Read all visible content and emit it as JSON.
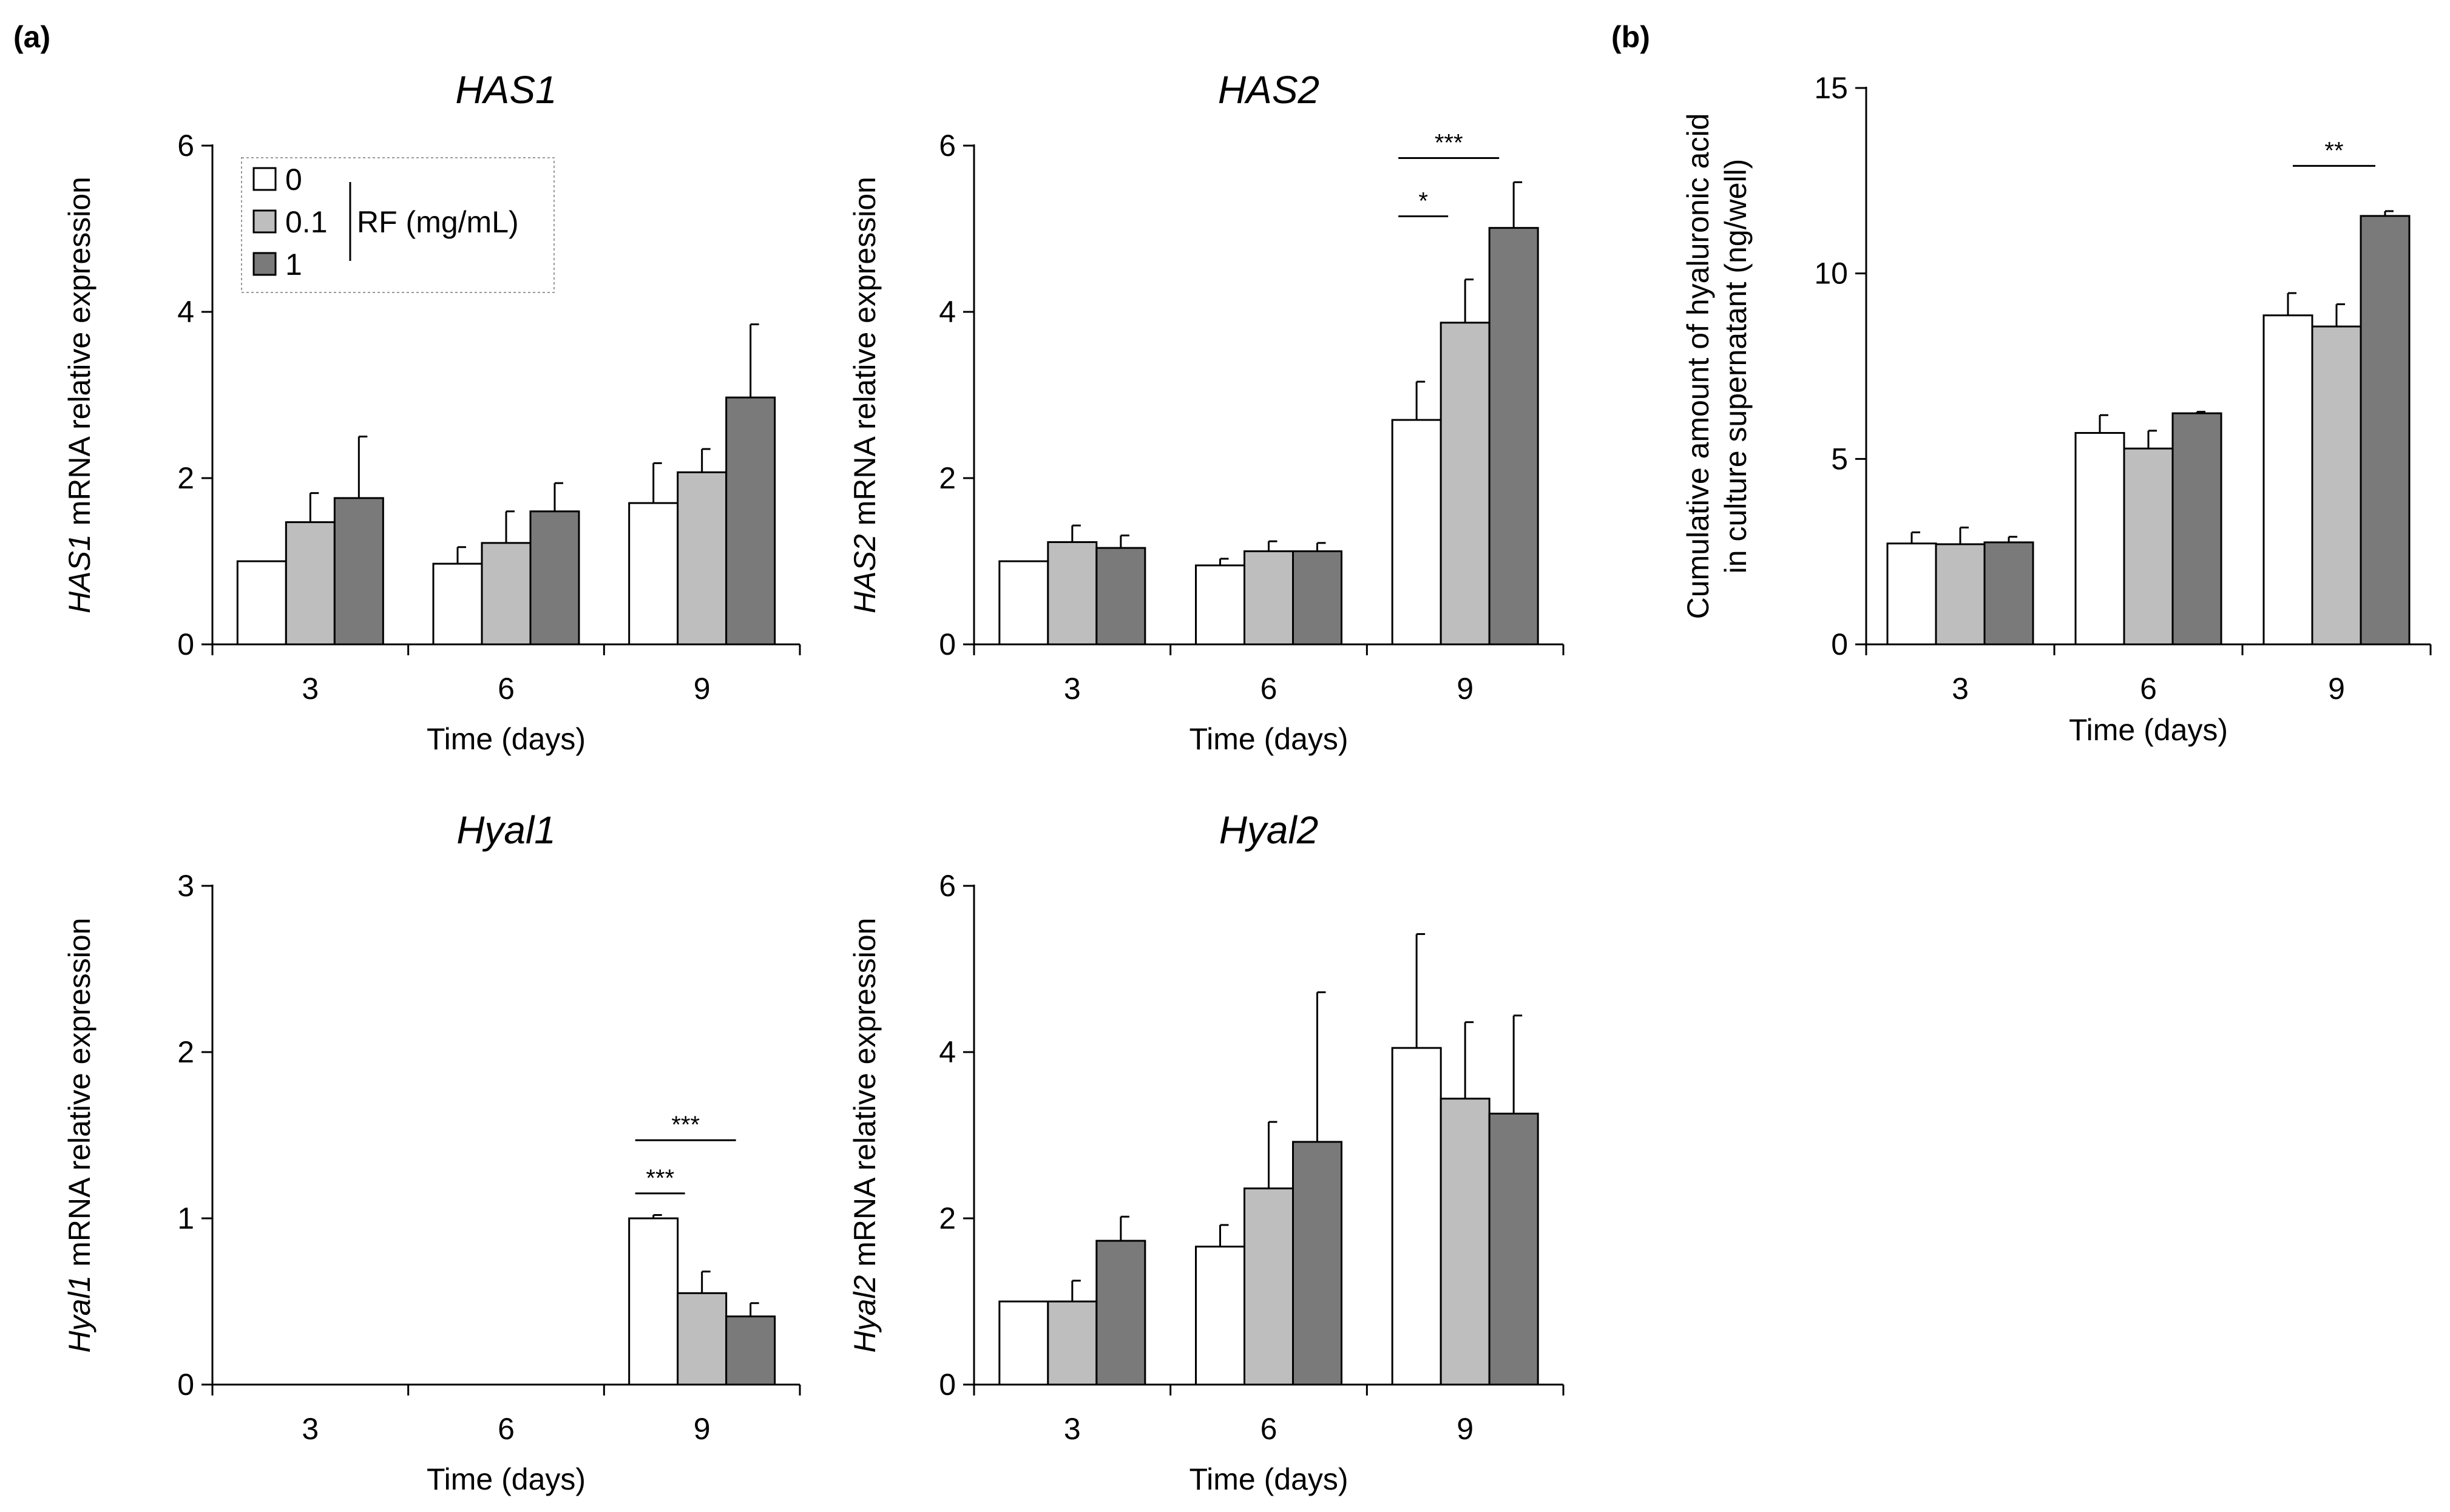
{
  "panel_labels": [
    "(a)",
    "(b)"
  ],
  "legend": {
    "entries": [
      {
        "label": "0",
        "color": "#ffffff"
      },
      {
        "label": "0.1",
        "color": "#bebebe"
      },
      {
        "label": "1",
        "color": "#7a7a7a"
      }
    ],
    "group_label": "RF (mg/mL)"
  },
  "series_colors": [
    "#ffffff",
    "#bebebe",
    "#7a7a7a"
  ],
  "chart_data": [
    {
      "id": "has1",
      "type": "bar",
      "title": "HAS1",
      "title_italic": true,
      "ylabel_italic": "HAS1",
      "ylabel_rest": " mRNA relative expression",
      "xlabel": "Time (days)",
      "categories": [
        "3",
        "6",
        "9"
      ],
      "ylim": [
        0,
        6
      ],
      "yticks": [
        0,
        2,
        4,
        6
      ],
      "series": [
        {
          "name": "0",
          "values": [
            1.0,
            0.97,
            1.7
          ],
          "errors": [
            0.0,
            0.2,
            0.48
          ]
        },
        {
          "name": "0.1",
          "values": [
            1.47,
            1.22,
            2.07
          ],
          "errors": [
            0.35,
            0.38,
            0.28
          ]
        },
        {
          "name": "1",
          "values": [
            1.76,
            1.6,
            2.97
          ],
          "errors": [
            0.74,
            0.34,
            0.88
          ]
        }
      ],
      "significance": []
    },
    {
      "id": "has2",
      "type": "bar",
      "title": "HAS2",
      "title_italic": true,
      "ylabel_italic": "HAS2",
      "ylabel_rest": " mRNA relative expression",
      "xlabel": "Time (days)",
      "categories": [
        "3",
        "6",
        "9"
      ],
      "ylim": [
        0,
        6
      ],
      "yticks": [
        0,
        2,
        4,
        6
      ],
      "series": [
        {
          "name": "0",
          "values": [
            1.0,
            0.95,
            2.7
          ],
          "errors": [
            0.0,
            0.08,
            0.46
          ]
        },
        {
          "name": "0.1",
          "values": [
            1.23,
            1.12,
            3.87
          ],
          "errors": [
            0.2,
            0.12,
            0.52
          ]
        },
        {
          "name": "1",
          "values": [
            1.16,
            1.12,
            5.01
          ],
          "errors": [
            0.15,
            0.1,
            0.55
          ]
        }
      ],
      "significance": [
        {
          "label": "*",
          "category": 2,
          "from": 0,
          "to": 1,
          "y": 5.15
        },
        {
          "label": "***",
          "category": 2,
          "from": 0,
          "to": 2,
          "y": 5.85
        }
      ]
    },
    {
      "id": "hyal1",
      "type": "bar",
      "title": "Hyal1",
      "title_italic": true,
      "ylabel_italic": "Hyal1",
      "ylabel_rest": " mRNA relative expression",
      "xlabel": "Time (days)",
      "categories": [
        "3",
        "6",
        "9"
      ],
      "ylim": [
        0,
        3
      ],
      "yticks": [
        0,
        1,
        2,
        3
      ],
      "series": [
        {
          "name": "0",
          "values": [
            null,
            null,
            1.0
          ],
          "errors": [
            null,
            null,
            0.02
          ]
        },
        {
          "name": "0.1",
          "values": [
            null,
            null,
            0.55
          ],
          "errors": [
            null,
            null,
            0.13
          ]
        },
        {
          "name": "1",
          "values": [
            null,
            null,
            0.41
          ],
          "errors": [
            null,
            null,
            0.08
          ]
        }
      ],
      "significance": [
        {
          "label": "***",
          "category": 2,
          "from": 0,
          "to": 1,
          "y": 1.15
        },
        {
          "label": "***",
          "category": 2,
          "from": 0,
          "to": 2,
          "y": 1.47
        }
      ]
    },
    {
      "id": "hyal2",
      "type": "bar",
      "title": "Hyal2",
      "title_italic": true,
      "ylabel_italic": "Hyal2",
      "ylabel_rest": " mRNA relative expression",
      "xlabel": "Time (days)",
      "categories": [
        "3",
        "6",
        "9"
      ],
      "ylim": [
        0,
        6
      ],
      "yticks": [
        0,
        2,
        4,
        6
      ],
      "series": [
        {
          "name": "0",
          "values": [
            1.0,
            1.66,
            4.05
          ],
          "errors": [
            0.0,
            0.26,
            1.37
          ]
        },
        {
          "name": "0.1",
          "values": [
            1.0,
            2.36,
            3.44
          ],
          "errors": [
            0.25,
            0.8,
            0.92
          ]
        },
        {
          "name": "1",
          "values": [
            1.73,
            2.92,
            3.26
          ],
          "errors": [
            0.29,
            1.8,
            1.18
          ]
        }
      ],
      "significance": []
    },
    {
      "id": "hyaluronic",
      "type": "bar",
      "title": "",
      "title_italic": false,
      "ylabel_lines": [
        "Cumulative amount of hyaluronic acid",
        "in culture supernatant (ng/well)"
      ],
      "xlabel": "Time (days)",
      "categories": [
        "3",
        "6",
        "9"
      ],
      "ylim": [
        0,
        15
      ],
      "yticks": [
        0,
        5,
        10,
        15
      ],
      "series": [
        {
          "name": "0",
          "values": [
            2.72,
            5.7,
            8.87
          ],
          "errors": [
            0.3,
            0.48,
            0.6
          ]
        },
        {
          "name": "0.1",
          "values": [
            2.7,
            5.28,
            8.57
          ],
          "errors": [
            0.45,
            0.48,
            0.6
          ]
        },
        {
          "name": "1",
          "values": [
            2.75,
            6.23,
            11.55
          ],
          "errors": [
            0.15,
            0.04,
            0.13
          ]
        }
      ],
      "significance": [
        {
          "label": "**",
          "category": 2,
          "from": 0,
          "to": 2,
          "y": 12.9,
          "short": true
        }
      ]
    }
  ]
}
